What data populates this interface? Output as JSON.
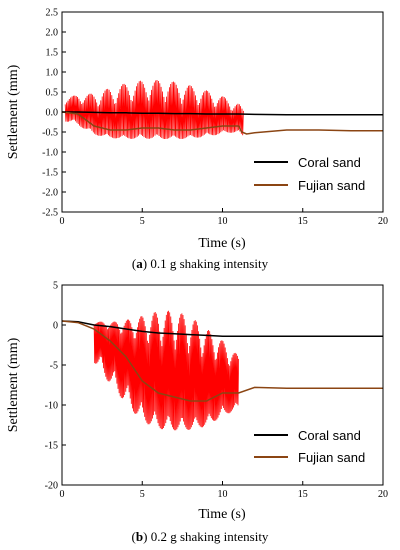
{
  "chart_data": [
    {
      "type": "line",
      "caption": {
        "label": "a",
        "text": "0.1 g shaking intensity"
      },
      "xlabel": "Time (s)",
      "ylabel": "Settlement (mm)",
      "xlim": [
        0,
        20
      ],
      "ylim": [
        -2.5,
        2.5
      ],
      "xticks": [
        0,
        5,
        10,
        15,
        20
      ],
      "yticks": [
        -2.5,
        -2.0,
        -1.5,
        -1.0,
        -0.5,
        0.0,
        0.5,
        1.0,
        1.5,
        2.0,
        2.5
      ],
      "ytick_labels": [
        "-2.5",
        "-2.0",
        "-1.5",
        "-1.0",
        "-0.5",
        "0.0",
        "0.5",
        "1.0",
        "1.5",
        "2.0",
        "2.5"
      ],
      "grid": false,
      "legend": "bottom-right",
      "series": [
        {
          "name": "Coral sand",
          "color": "#000000",
          "x": [
            0,
            1,
            2,
            3,
            4,
            5,
            6,
            7,
            8,
            9,
            10,
            11,
            12,
            14,
            16,
            18,
            20
          ],
          "y": [
            0.0,
            0.0,
            -0.01,
            -0.02,
            -0.02,
            -0.03,
            -0.03,
            -0.04,
            -0.04,
            -0.05,
            -0.05,
            -0.05,
            -0.06,
            -0.07,
            -0.07,
            -0.07,
            -0.07
          ]
        },
        {
          "name": "Fujian sand",
          "color": "#8B4513",
          "x": [
            0,
            1,
            2,
            3,
            4,
            5,
            6,
            7,
            8,
            9,
            10,
            11,
            11.2,
            11.5,
            12,
            14,
            16,
            18,
            20
          ],
          "y": [
            0.0,
            -0.05,
            -0.35,
            -0.45,
            -0.45,
            -0.4,
            -0.4,
            -0.45,
            -0.45,
            -0.4,
            -0.35,
            -0.35,
            -0.5,
            -0.55,
            -0.52,
            -0.45,
            -0.45,
            -0.47,
            -0.47
          ]
        }
      ],
      "oscillation": {
        "color": "#FF0000",
        "x_start": 0.2,
        "x_end": 11.3,
        "peak_upper": 0.8,
        "peak_lower": -0.85
      }
    },
    {
      "type": "line",
      "caption": {
        "label": "b",
        "text": "0.2 g shaking intensity"
      },
      "xlabel": "Time (s)",
      "ylabel": "Settlement (mm)",
      "xlim": [
        0,
        20
      ],
      "ylim": [
        -20,
        5
      ],
      "xticks": [
        0,
        5,
        10,
        15,
        20
      ],
      "yticks": [
        -20,
        -15,
        -10,
        -5,
        0,
        5
      ],
      "ytick_labels": [
        "-20",
        "-15",
        "-10",
        "-5",
        "0",
        "5"
      ],
      "grid": false,
      "legend": "bottom-right",
      "series": [
        {
          "name": "Coral sand",
          "color": "#000000",
          "x": [
            0,
            1,
            2,
            3,
            4,
            5,
            6,
            7,
            8,
            9,
            10,
            12,
            15,
            20
          ],
          "y": [
            0.5,
            0.4,
            0.0,
            -0.2,
            -0.5,
            -0.8,
            -1.0,
            -1.1,
            -1.2,
            -1.3,
            -1.4,
            -1.4,
            -1.4,
            -1.4
          ]
        },
        {
          "name": "Fujian sand",
          "color": "#8B4513",
          "x": [
            0,
            1,
            2,
            3,
            4,
            5,
            6,
            7,
            8,
            9,
            10,
            11,
            12,
            14,
            16,
            18,
            20
          ],
          "y": [
            0.5,
            0.3,
            -0.5,
            -2.0,
            -4.0,
            -7.0,
            -8.5,
            -9.0,
            -9.5,
            -9.5,
            -8.5,
            -8.5,
            -7.8,
            -7.9,
            -7.9,
            -7.9,
            -7.9
          ]
        }
      ],
      "oscillation": {
        "color": "#FF0000",
        "x_start": 2.0,
        "x_end": 11.0,
        "peak_upper": 1.8,
        "peak_lower": -16.0
      }
    }
  ]
}
